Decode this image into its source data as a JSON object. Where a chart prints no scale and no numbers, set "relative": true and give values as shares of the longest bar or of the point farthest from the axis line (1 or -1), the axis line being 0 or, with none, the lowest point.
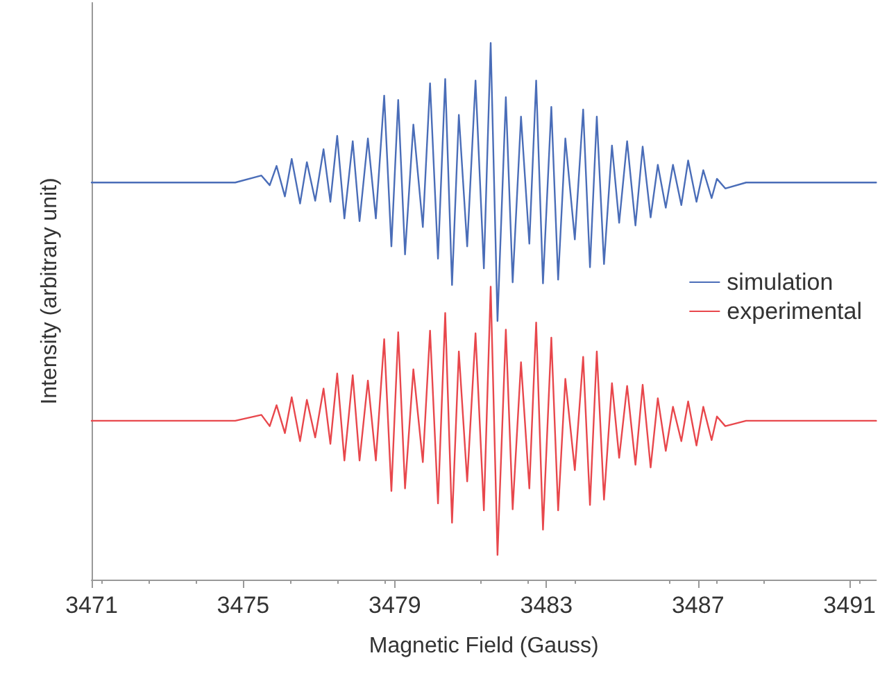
{
  "chart_data": {
    "type": "line",
    "xlabel": "Magnetic Field (Gauss)",
    "ylabel": "Intensity (arbitrary unit)",
    "relative": true,
    "x": [
      3471.0,
      3474.79,
      3475.48,
      3475.7,
      3475.88,
      3476.1,
      3476.28,
      3476.5,
      3476.68,
      3476.9,
      3477.12,
      3477.3,
      3477.48,
      3477.67,
      3477.89,
      3478.07,
      3478.29,
      3478.5,
      3478.72,
      3478.91,
      3479.09,
      3479.27,
      3479.49,
      3479.74,
      3479.93,
      3480.14,
      3480.33,
      3480.51,
      3480.69,
      3480.91,
      3481.13,
      3481.35,
      3481.53,
      3481.71,
      3481.93,
      3482.11,
      3482.33,
      3482.55,
      3482.73,
      3482.91,
      3483.13,
      3483.31,
      3483.5,
      3483.75,
      3483.97,
      3484.15,
      3484.33,
      3484.52,
      3484.73,
      3484.92,
      3485.13,
      3485.35,
      3485.54,
      3485.75,
      3485.94,
      3486.15,
      3486.34,
      3486.56,
      3486.74,
      3486.96,
      3487.14,
      3487.36,
      3487.5,
      3487.72,
      3488.27,
      3491.7
    ],
    "series": [
      {
        "name": "simulation",
        "color": "#4a6db8",
        "values": [
          0.74,
          0.74,
          0.753,
          0.735,
          0.771,
          0.714,
          0.784,
          0.701,
          0.778,
          0.706,
          0.802,
          0.704,
          0.827,
          0.673,
          0.817,
          0.668,
          0.822,
          0.673,
          0.902,
          0.621,
          0.894,
          0.606,
          0.848,
          0.657,
          0.925,
          0.598,
          0.933,
          0.549,
          0.866,
          0.621,
          0.93,
          0.58,
          1.0,
          0.482,
          0.899,
          0.554,
          0.863,
          0.626,
          0.93,
          0.552,
          0.881,
          0.559,
          0.822,
          0.634,
          0.876,
          0.582,
          0.863,
          0.588,
          0.809,
          0.665,
          0.817,
          0.66,
          0.807,
          0.675,
          0.773,
          0.693,
          0.773,
          0.698,
          0.781,
          0.704,
          0.763,
          0.711,
          0.747,
          0.729,
          0.74,
          0.74
        ]
      },
      {
        "name": "experimental",
        "color": "#e8474c",
        "values": [
          0.296,
          0.296,
          0.307,
          0.286,
          0.325,
          0.273,
          0.34,
          0.258,
          0.335,
          0.265,
          0.356,
          0.253,
          0.384,
          0.222,
          0.381,
          0.222,
          0.371,
          0.222,
          0.448,
          0.165,
          0.461,
          0.17,
          0.392,
          0.219,
          0.464,
          0.142,
          0.497,
          0.106,
          0.425,
          0.183,
          0.459,
          0.129,
          0.546,
          0.046,
          0.466,
          0.131,
          0.405,
          0.17,
          0.479,
          0.093,
          0.451,
          0.129,
          0.374,
          0.204,
          0.415,
          0.139,
          0.425,
          0.149,
          0.366,
          0.227,
          0.361,
          0.214,
          0.363,
          0.209,
          0.338,
          0.24,
          0.322,
          0.258,
          0.332,
          0.25,
          0.322,
          0.26,
          0.304,
          0.286,
          0.296,
          0.296
        ]
      }
    ],
    "xlim": [
      3471,
      3491.7
    ],
    "xticks": [
      3471,
      3475,
      3479,
      3483,
      3487,
      3491
    ],
    "legend": "right",
    "grid": false,
    "marker": "none",
    "line_style": "solid"
  }
}
